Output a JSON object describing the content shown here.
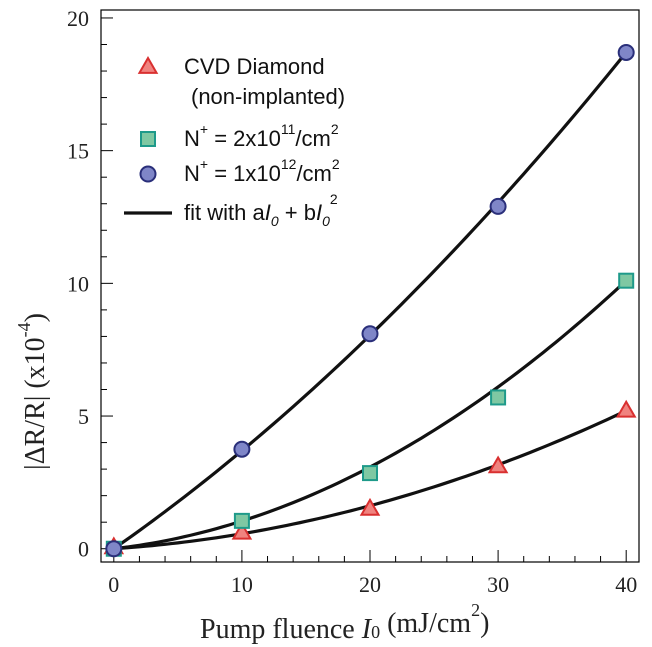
{
  "chart_data": {
    "type": "scatter",
    "xlabel": "Pump fluence",
    "xlabel_symbol": "I",
    "xlabel_symbol_sub": "0",
    "xlabel_unit": "(mJ/cm",
    "xlabel_unit_sup": "2",
    "xlabel_unit_close": ")",
    "ylabel": "|ΔR/R| (x10",
    "ylabel_sup": "-4",
    "ylabel_close": ")",
    "xlim": [
      -1,
      41
    ],
    "ylim": [
      -0.5,
      20.3
    ],
    "x_ticks": [
      0,
      10,
      20,
      30,
      40
    ],
    "x_tick_labels": [
      "0",
      "10",
      "20",
      "30",
      "40"
    ],
    "x_minor_step": 2,
    "y_ticks": [
      0,
      5,
      10,
      15,
      20
    ],
    "y_tick_labels": [
      "0",
      "5",
      "10",
      "15",
      "20"
    ],
    "y_minor_step": 1,
    "grid": false,
    "legend_position": "top-left",
    "series": [
      {
        "key": "diamond",
        "label_line1": "CVD Diamond",
        "label_line2": "(non-implanted)",
        "marker": "triangle",
        "fill": "#f0837f",
        "stroke": "#d93030",
        "x": [
          0,
          10,
          20,
          30,
          40
        ],
        "y": [
          0.05,
          0.6,
          1.5,
          3.1,
          5.2
        ]
      },
      {
        "key": "n2e11",
        "label_base": "N",
        "label_sup1": "+",
        "label_mid": " = 2x10",
        "label_sup2": "11",
        "label_unit": "/cm",
        "label_sup3": "2",
        "marker": "square",
        "fill": "#7fc8a3",
        "stroke": "#1e9a8a",
        "x": [
          0,
          10,
          20,
          30,
          40
        ],
        "y": [
          0.0,
          1.05,
          2.85,
          5.7,
          10.1
        ]
      },
      {
        "key": "n1e12",
        "label_base": "N",
        "label_sup1": "+",
        "label_mid": " = 1x10",
        "label_sup2": "12",
        "label_unit": "/cm",
        "label_sup3": "2",
        "marker": "circle",
        "fill": "#7f86c8",
        "stroke": "#2a2f7a",
        "x": [
          0,
          10,
          20,
          30,
          40
        ],
        "y": [
          0.0,
          3.75,
          8.1,
          12.9,
          18.7
        ]
      }
    ],
    "fits": [
      {
        "key": "fit-diamond",
        "a": 0.032,
        "b": 0.00245
      },
      {
        "key": "fit-n2e11",
        "a": 0.055,
        "b": 0.00494
      },
      {
        "key": "fit-n1e12",
        "a": 0.3366,
        "b": 0.003275
      }
    ],
    "fit_legend": {
      "label_prefix": "fit with a",
      "label_symbol1": "I",
      "label_sub1": "0",
      "label_mid": " + b",
      "label_symbol2": "I",
      "label_sub2": "0",
      "label_sup": "2",
      "line_color": "#111111"
    }
  }
}
